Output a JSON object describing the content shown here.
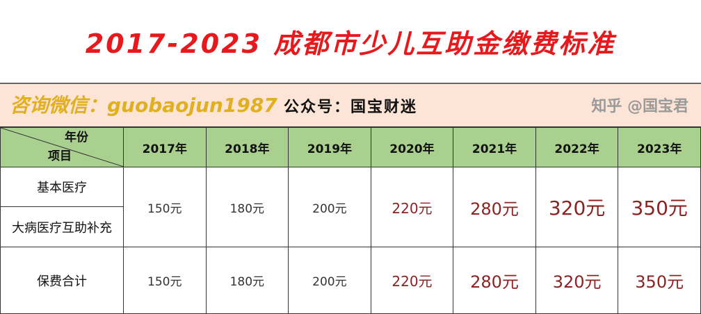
{
  "title": "2017-2023 成都市少儿互助金缴费标准",
  "subtitle": "公众号：国宝财迷",
  "table": {
    "corner_top": "年份",
    "corner_bottom": "项目",
    "years": [
      "2017年",
      "2018年",
      "2019年",
      "2020年",
      "2021年",
      "2022年",
      "2023年"
    ],
    "row_labels": [
      "基本医疗",
      "大病医疗互助补充",
      "保费合计"
    ],
    "premium": [
      "150元",
      "180元",
      "200元",
      "220元",
      "280元",
      "320元",
      "350元"
    ],
    "total": [
      "150元",
      "180元",
      "200元",
      "220元",
      "280元",
      "320元",
      "350元"
    ]
  },
  "watermarks": [
    "咨询微信：guobaojun1987",
    "知乎 @国宝君"
  ],
  "colors": {
    "title": "#e8191d",
    "subtitle_bg": "#fce4d6",
    "header_bg": "#a9d08e",
    "value_red": "#8b2323",
    "watermark": "#f5d24a"
  }
}
